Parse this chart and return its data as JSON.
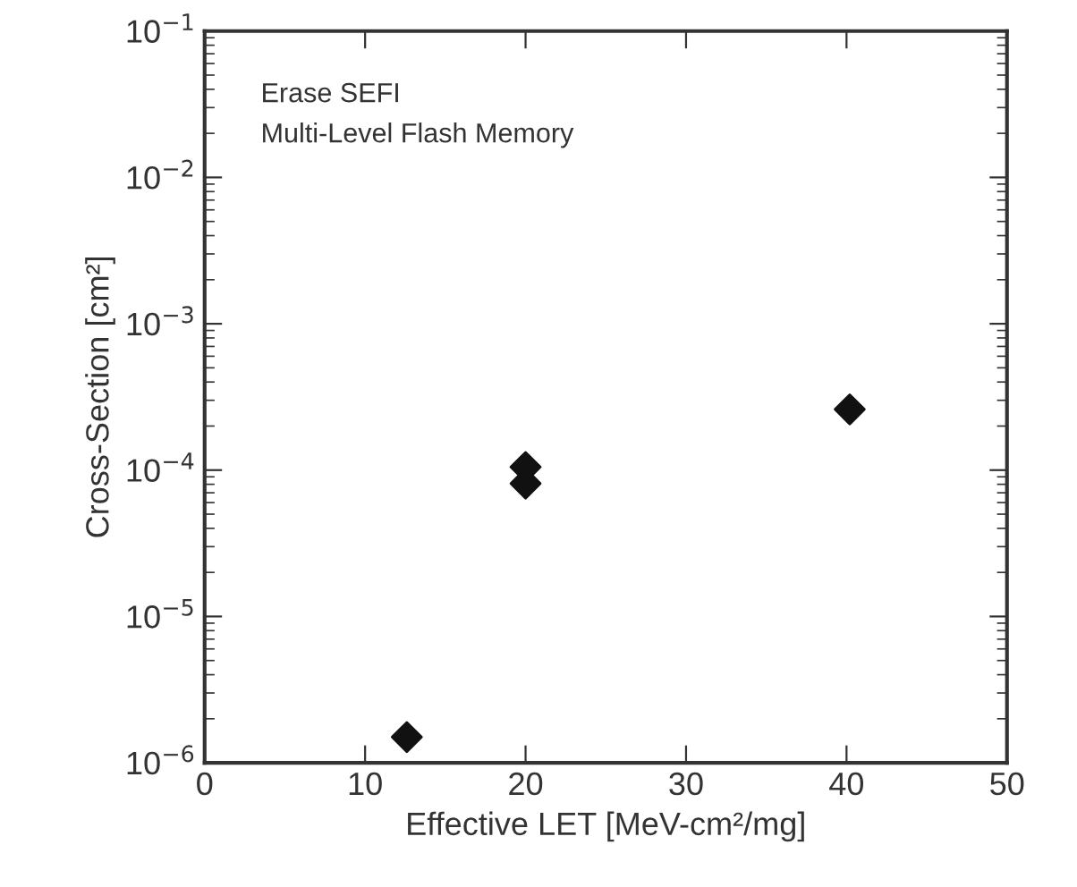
{
  "chart_data": {
    "type": "scatter",
    "xlabel": "Effective LET [MeV-cm²/mg]",
    "ylabel": "Cross-Section [cm²]",
    "annotations": [
      "Erase SEFI",
      "Multi-Level Flash Memory"
    ],
    "x": [
      12.6,
      20,
      20,
      40.2
    ],
    "series": [
      {
        "color": "#111111",
        "values": [
          1.5e-06,
          0.000105,
          8.1e-05,
          0.00026
        ]
      }
    ],
    "marker": "diamond",
    "log": "y",
    "xlim": [
      0,
      50
    ],
    "xticks": [
      0,
      10,
      20,
      30,
      40,
      50
    ],
    "ylim": [
      1e-06,
      0.1
    ],
    "yticks": [
      {
        "value": 1e-06,
        "label": "10$^{−6}$"
      },
      {
        "value": 1e-05,
        "label": "10$^{−5}$"
      },
      {
        "value": 0.0001,
        "label": "10$^{−4}$"
      },
      {
        "value": 0.001,
        "label": "10$^{−3}$"
      },
      {
        "value": 0.01,
        "label": "10$^{−2}$"
      },
      {
        "value": 0.1,
        "label": "10$^{−1}$"
      }
    ]
  }
}
